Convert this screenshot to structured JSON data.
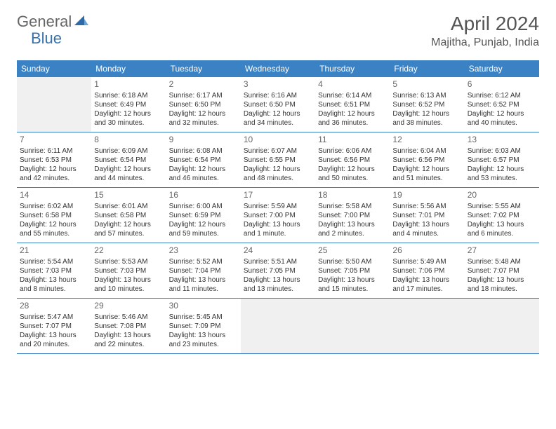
{
  "logo": {
    "text1": "General",
    "text2": "Blue"
  },
  "title": "April 2024",
  "location": "Majitha, Punjab, India",
  "headers": [
    "Sunday",
    "Monday",
    "Tuesday",
    "Wednesday",
    "Thursday",
    "Friday",
    "Saturday"
  ],
  "header_bg": "#3b82c4",
  "header_fg": "#ffffff",
  "empty_bg": "#f0f0f0",
  "row_border": "#3b82c4",
  "weeks": [
    [
      {
        "empty": true
      },
      {
        "num": "1",
        "sunrise": "Sunrise: 6:18 AM",
        "sunset": "Sunset: 6:49 PM",
        "day1": "Daylight: 12 hours",
        "day2": "and 30 minutes."
      },
      {
        "num": "2",
        "sunrise": "Sunrise: 6:17 AM",
        "sunset": "Sunset: 6:50 PM",
        "day1": "Daylight: 12 hours",
        "day2": "and 32 minutes."
      },
      {
        "num": "3",
        "sunrise": "Sunrise: 6:16 AM",
        "sunset": "Sunset: 6:50 PM",
        "day1": "Daylight: 12 hours",
        "day2": "and 34 minutes."
      },
      {
        "num": "4",
        "sunrise": "Sunrise: 6:14 AM",
        "sunset": "Sunset: 6:51 PM",
        "day1": "Daylight: 12 hours",
        "day2": "and 36 minutes."
      },
      {
        "num": "5",
        "sunrise": "Sunrise: 6:13 AM",
        "sunset": "Sunset: 6:52 PM",
        "day1": "Daylight: 12 hours",
        "day2": "and 38 minutes."
      },
      {
        "num": "6",
        "sunrise": "Sunrise: 6:12 AM",
        "sunset": "Sunset: 6:52 PM",
        "day1": "Daylight: 12 hours",
        "day2": "and 40 minutes."
      }
    ],
    [
      {
        "num": "7",
        "sunrise": "Sunrise: 6:11 AM",
        "sunset": "Sunset: 6:53 PM",
        "day1": "Daylight: 12 hours",
        "day2": "and 42 minutes."
      },
      {
        "num": "8",
        "sunrise": "Sunrise: 6:09 AM",
        "sunset": "Sunset: 6:54 PM",
        "day1": "Daylight: 12 hours",
        "day2": "and 44 minutes."
      },
      {
        "num": "9",
        "sunrise": "Sunrise: 6:08 AM",
        "sunset": "Sunset: 6:54 PM",
        "day1": "Daylight: 12 hours",
        "day2": "and 46 minutes."
      },
      {
        "num": "10",
        "sunrise": "Sunrise: 6:07 AM",
        "sunset": "Sunset: 6:55 PM",
        "day1": "Daylight: 12 hours",
        "day2": "and 48 minutes."
      },
      {
        "num": "11",
        "sunrise": "Sunrise: 6:06 AM",
        "sunset": "Sunset: 6:56 PM",
        "day1": "Daylight: 12 hours",
        "day2": "and 50 minutes."
      },
      {
        "num": "12",
        "sunrise": "Sunrise: 6:04 AM",
        "sunset": "Sunset: 6:56 PM",
        "day1": "Daylight: 12 hours",
        "day2": "and 51 minutes."
      },
      {
        "num": "13",
        "sunrise": "Sunrise: 6:03 AM",
        "sunset": "Sunset: 6:57 PM",
        "day1": "Daylight: 12 hours",
        "day2": "and 53 minutes."
      }
    ],
    [
      {
        "num": "14",
        "sunrise": "Sunrise: 6:02 AM",
        "sunset": "Sunset: 6:58 PM",
        "day1": "Daylight: 12 hours",
        "day2": "and 55 minutes."
      },
      {
        "num": "15",
        "sunrise": "Sunrise: 6:01 AM",
        "sunset": "Sunset: 6:58 PM",
        "day1": "Daylight: 12 hours",
        "day2": "and 57 minutes."
      },
      {
        "num": "16",
        "sunrise": "Sunrise: 6:00 AM",
        "sunset": "Sunset: 6:59 PM",
        "day1": "Daylight: 12 hours",
        "day2": "and 59 minutes."
      },
      {
        "num": "17",
        "sunrise": "Sunrise: 5:59 AM",
        "sunset": "Sunset: 7:00 PM",
        "day1": "Daylight: 13 hours",
        "day2": "and 1 minute."
      },
      {
        "num": "18",
        "sunrise": "Sunrise: 5:58 AM",
        "sunset": "Sunset: 7:00 PM",
        "day1": "Daylight: 13 hours",
        "day2": "and 2 minutes."
      },
      {
        "num": "19",
        "sunrise": "Sunrise: 5:56 AM",
        "sunset": "Sunset: 7:01 PM",
        "day1": "Daylight: 13 hours",
        "day2": "and 4 minutes."
      },
      {
        "num": "20",
        "sunrise": "Sunrise: 5:55 AM",
        "sunset": "Sunset: 7:02 PM",
        "day1": "Daylight: 13 hours",
        "day2": "and 6 minutes."
      }
    ],
    [
      {
        "num": "21",
        "sunrise": "Sunrise: 5:54 AM",
        "sunset": "Sunset: 7:03 PM",
        "day1": "Daylight: 13 hours",
        "day2": "and 8 minutes."
      },
      {
        "num": "22",
        "sunrise": "Sunrise: 5:53 AM",
        "sunset": "Sunset: 7:03 PM",
        "day1": "Daylight: 13 hours",
        "day2": "and 10 minutes."
      },
      {
        "num": "23",
        "sunrise": "Sunrise: 5:52 AM",
        "sunset": "Sunset: 7:04 PM",
        "day1": "Daylight: 13 hours",
        "day2": "and 11 minutes."
      },
      {
        "num": "24",
        "sunrise": "Sunrise: 5:51 AM",
        "sunset": "Sunset: 7:05 PM",
        "day1": "Daylight: 13 hours",
        "day2": "and 13 minutes."
      },
      {
        "num": "25",
        "sunrise": "Sunrise: 5:50 AM",
        "sunset": "Sunset: 7:05 PM",
        "day1": "Daylight: 13 hours",
        "day2": "and 15 minutes."
      },
      {
        "num": "26",
        "sunrise": "Sunrise: 5:49 AM",
        "sunset": "Sunset: 7:06 PM",
        "day1": "Daylight: 13 hours",
        "day2": "and 17 minutes."
      },
      {
        "num": "27",
        "sunrise": "Sunrise: 5:48 AM",
        "sunset": "Sunset: 7:07 PM",
        "day1": "Daylight: 13 hours",
        "day2": "and 18 minutes."
      }
    ],
    [
      {
        "num": "28",
        "sunrise": "Sunrise: 5:47 AM",
        "sunset": "Sunset: 7:07 PM",
        "day1": "Daylight: 13 hours",
        "day2": "and 20 minutes."
      },
      {
        "num": "29",
        "sunrise": "Sunrise: 5:46 AM",
        "sunset": "Sunset: 7:08 PM",
        "day1": "Daylight: 13 hours",
        "day2": "and 22 minutes."
      },
      {
        "num": "30",
        "sunrise": "Sunrise: 5:45 AM",
        "sunset": "Sunset: 7:09 PM",
        "day1": "Daylight: 13 hours",
        "day2": "and 23 minutes."
      },
      {
        "empty": true
      },
      {
        "empty": true
      },
      {
        "empty": true
      },
      {
        "empty": true
      }
    ]
  ]
}
